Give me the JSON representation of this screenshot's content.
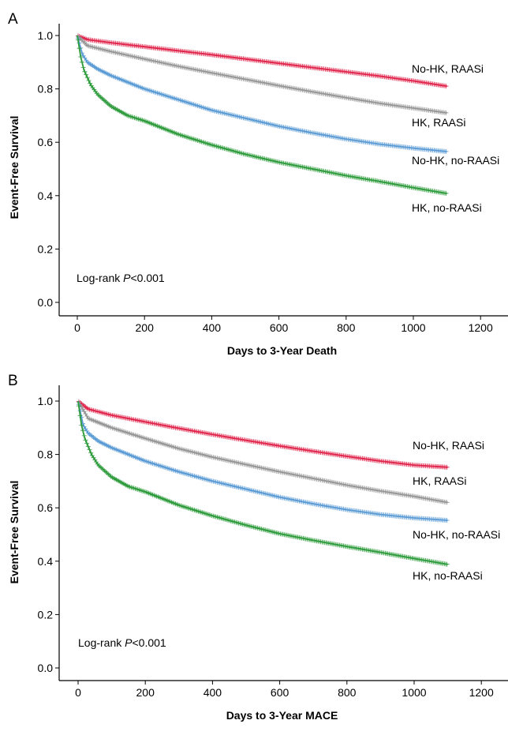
{
  "chart_data": [
    {
      "type": "line",
      "panel": "A",
      "xlabel": "Days to 3-Year Death",
      "ylabel": "Event-Free Survival",
      "xlim": [
        -60,
        1230
      ],
      "ylim": [
        -0.04,
        1.04
      ],
      "xticks": [
        0,
        200,
        400,
        600,
        800,
        1000,
        1200
      ],
      "yticks": [
        0.0,
        0.2,
        0.4,
        0.6,
        0.8,
        1.0
      ],
      "yticklabels": [
        "0.0",
        "0.2",
        "0.4",
        "0.6",
        "0.8",
        "1.0"
      ],
      "grid": false,
      "annotation": {
        "prefix": "Log-rank ",
        "italic": "P",
        "suffix": "<0.001"
      },
      "series": [
        {
          "name": "No-HK, RAASi",
          "color": "#e0244b",
          "x": [
            0,
            30,
            100,
            200,
            300,
            400,
            500,
            600,
            700,
            800,
            900,
            1000,
            1100
          ],
          "y": [
            1.0,
            0.985,
            0.973,
            0.958,
            0.943,
            0.928,
            0.912,
            0.896,
            0.88,
            0.864,
            0.848,
            0.83,
            0.81
          ]
        },
        {
          "name": "HK, RAASi",
          "color": "#969696",
          "x": [
            0,
            30,
            100,
            200,
            300,
            400,
            500,
            600,
            700,
            800,
            900,
            1000,
            1100
          ],
          "y": [
            1.0,
            0.962,
            0.94,
            0.912,
            0.885,
            0.86,
            0.836,
            0.812,
            0.789,
            0.767,
            0.746,
            0.728,
            0.71
          ]
        },
        {
          "name": "No-HK, no-RAASi",
          "color": "#5b9bd5",
          "x": [
            0,
            15,
            30,
            60,
            100,
            200,
            300,
            400,
            500,
            600,
            700,
            800,
            900,
            1000,
            1100
          ],
          "y": [
            1.0,
            0.93,
            0.9,
            0.875,
            0.85,
            0.8,
            0.76,
            0.72,
            0.69,
            0.66,
            0.635,
            0.612,
            0.593,
            0.578,
            0.565
          ]
        },
        {
          "name": "HK, no-RAASi",
          "color": "#2e9b3c",
          "x": [
            0,
            10,
            20,
            40,
            60,
            100,
            150,
            200,
            300,
            400,
            500,
            600,
            700,
            800,
            900,
            1000,
            1100
          ],
          "y": [
            1.0,
            0.92,
            0.87,
            0.815,
            0.78,
            0.735,
            0.7,
            0.68,
            0.63,
            0.59,
            0.555,
            0.525,
            0.5,
            0.475,
            0.453,
            0.43,
            0.408
          ]
        }
      ]
    },
    {
      "type": "line",
      "panel": "B",
      "xlabel": "Days to 3-Year MACE",
      "ylabel": "Event-Free Survival",
      "xlim": [
        -60,
        1230
      ],
      "ylim": [
        -0.04,
        1.04
      ],
      "xticks": [
        0,
        200,
        400,
        600,
        800,
        1000,
        1200
      ],
      "yticks": [
        0.0,
        0.2,
        0.4,
        0.6,
        0.8,
        1.0
      ],
      "yticklabels": [
        "0.0",
        "0.2",
        "0.4",
        "0.6",
        "0.8",
        "1.0"
      ],
      "grid": false,
      "annotation": {
        "prefix": "Log-rank ",
        "italic": "P",
        "suffix": "<0.001"
      },
      "series": [
        {
          "name": "No-HK, RAASi",
          "color": "#e0244b",
          "x": [
            0,
            30,
            100,
            200,
            300,
            400,
            500,
            600,
            700,
            800,
            900,
            1000,
            1100
          ],
          "y": [
            1.0,
            0.97,
            0.947,
            0.922,
            0.898,
            0.875,
            0.853,
            0.832,
            0.812,
            0.793,
            0.775,
            0.76,
            0.752
          ]
        },
        {
          "name": "HK, RAASi",
          "color": "#969696",
          "x": [
            0,
            30,
            100,
            200,
            300,
            400,
            500,
            600,
            700,
            800,
            900,
            1000,
            1100
          ],
          "y": [
            1.0,
            0.935,
            0.9,
            0.86,
            0.822,
            0.79,
            0.762,
            0.735,
            0.71,
            0.685,
            0.663,
            0.643,
            0.62
          ]
        },
        {
          "name": "No-HK, no-RAASi",
          "color": "#5b9bd5",
          "x": [
            0,
            15,
            30,
            60,
            100,
            200,
            300,
            400,
            500,
            600,
            700,
            800,
            900,
            1000,
            1100
          ],
          "y": [
            1.0,
            0.91,
            0.88,
            0.85,
            0.825,
            0.775,
            0.735,
            0.7,
            0.67,
            0.64,
            0.615,
            0.593,
            0.575,
            0.562,
            0.553
          ]
        },
        {
          "name": "HK, no-RAASi",
          "color": "#2e9b3c",
          "x": [
            0,
            10,
            20,
            40,
            60,
            100,
            150,
            200,
            300,
            400,
            500,
            600,
            700,
            800,
            900,
            1000,
            1100
          ],
          "y": [
            1.0,
            0.91,
            0.86,
            0.8,
            0.76,
            0.715,
            0.68,
            0.66,
            0.61,
            0.57,
            0.535,
            0.503,
            0.478,
            0.455,
            0.433,
            0.41,
            0.388
          ]
        }
      ]
    }
  ]
}
